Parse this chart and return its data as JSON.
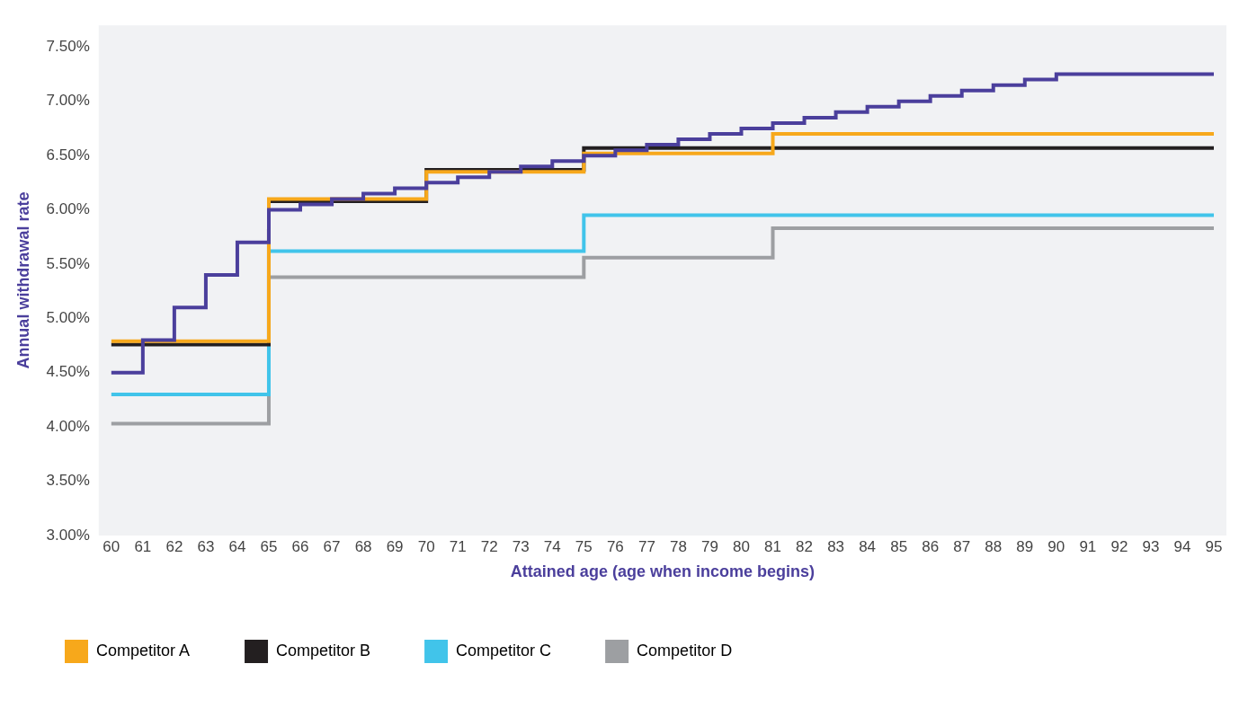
{
  "chart_data": {
    "type": "step",
    "xlabel": "Attained age (age when income begins)",
    "ylabel": "Annual withdrawal rate",
    "x": [
      60,
      61,
      62,
      63,
      64,
      65,
      66,
      67,
      68,
      69,
      70,
      71,
      72,
      73,
      74,
      75,
      76,
      77,
      78,
      79,
      80,
      81,
      82,
      83,
      84,
      85,
      86,
      87,
      88,
      89,
      90,
      91,
      92,
      93,
      94,
      95
    ],
    "series": [
      {
        "color": "#4b3f9c",
        "values": [
          4.5,
          4.8,
          5.1,
          5.4,
          5.7,
          6.0,
          6.05,
          6.1,
          6.15,
          6.2,
          6.25,
          6.3,
          6.35,
          6.4,
          6.45,
          6.5,
          6.55,
          6.6,
          6.65,
          6.7,
          6.75,
          6.8,
          6.85,
          6.9,
          6.95,
          7.0,
          7.05,
          7.1,
          7.15,
          7.2,
          7.25,
          7.25,
          7.25,
          7.25,
          7.25,
          7.25
        ]
      },
      {
        "name": "Competitor A",
        "color": "#f7a81b",
        "values": [
          4.79,
          4.79,
          4.79,
          4.79,
          4.79,
          6.1,
          6.1,
          6.1,
          6.1,
          6.1,
          6.35,
          6.35,
          6.35,
          6.35,
          6.35,
          6.52,
          6.52,
          6.52,
          6.52,
          6.52,
          6.52,
          6.7,
          6.7,
          6.7,
          6.7,
          6.7,
          6.7,
          6.7,
          6.7,
          6.7,
          6.7,
          6.7,
          6.7,
          6.7,
          6.7,
          6.7
        ]
      },
      {
        "name": "Competitor B",
        "color": "#231f20",
        "values": [
          4.76,
          4.76,
          4.76,
          4.76,
          4.76,
          6.08,
          6.08,
          6.08,
          6.08,
          6.08,
          6.37,
          6.37,
          6.37,
          6.37,
          6.37,
          6.57,
          6.57,
          6.57,
          6.57,
          6.57,
          6.57,
          6.57,
          6.57,
          6.57,
          6.57,
          6.57,
          6.57,
          6.57,
          6.57,
          6.57,
          6.57,
          6.57,
          6.57,
          6.57,
          6.57,
          6.57
        ]
      },
      {
        "name": "Competitor C",
        "color": "#41c4ea",
        "values": [
          4.3,
          4.3,
          4.3,
          4.3,
          4.3,
          5.62,
          5.62,
          5.62,
          5.62,
          5.62,
          5.62,
          5.62,
          5.62,
          5.62,
          5.62,
          5.95,
          5.95,
          5.95,
          5.95,
          5.95,
          5.95,
          5.95,
          5.95,
          5.95,
          5.95,
          5.95,
          5.95,
          5.95,
          5.95,
          5.95,
          5.95,
          5.95,
          5.95,
          5.95,
          5.95,
          5.95
        ]
      },
      {
        "name": "Competitor D",
        "color": "#9d9fa2",
        "values": [
          4.03,
          4.03,
          4.03,
          4.03,
          4.03,
          5.38,
          5.38,
          5.38,
          5.38,
          5.38,
          5.38,
          5.38,
          5.38,
          5.38,
          5.38,
          5.56,
          5.56,
          5.56,
          5.56,
          5.56,
          5.56,
          5.83,
          5.83,
          5.83,
          5.83,
          5.83,
          5.83,
          5.83,
          5.83,
          5.83,
          5.83,
          5.83,
          5.83,
          5.83,
          5.83,
          5.83
        ]
      }
    ],
    "xlim": [
      59.6,
      95.4
    ],
    "xticks": [
      60,
      61,
      62,
      63,
      64,
      65,
      66,
      67,
      68,
      69,
      70,
      71,
      72,
      73,
      74,
      75,
      76,
      77,
      78,
      79,
      80,
      81,
      82,
      83,
      84,
      85,
      86,
      87,
      88,
      89,
      90,
      91,
      92,
      93,
      94,
      95
    ],
    "ylim": [
      3,
      7.7
    ],
    "yticks": [
      {
        "value": 3,
        "label": "3.00%"
      },
      {
        "value": 3.5,
        "label": "3.50%"
      },
      {
        "value": 4,
        "label": "4.00%"
      },
      {
        "value": 4.5,
        "label": "4.50%"
      },
      {
        "value": 5,
        "label": "5.00%"
      },
      {
        "value": 5.5,
        "label": "5.50%"
      },
      {
        "value": 6,
        "label": "6.00%"
      },
      {
        "value": 6.5,
        "label": "6.50%"
      },
      {
        "value": 7,
        "label": "7.00%"
      },
      {
        "value": 7.5,
        "label": "7.50%"
      }
    ],
    "grid": false,
    "legend": "bottom",
    "marker": "none",
    "line_style": "solid"
  }
}
